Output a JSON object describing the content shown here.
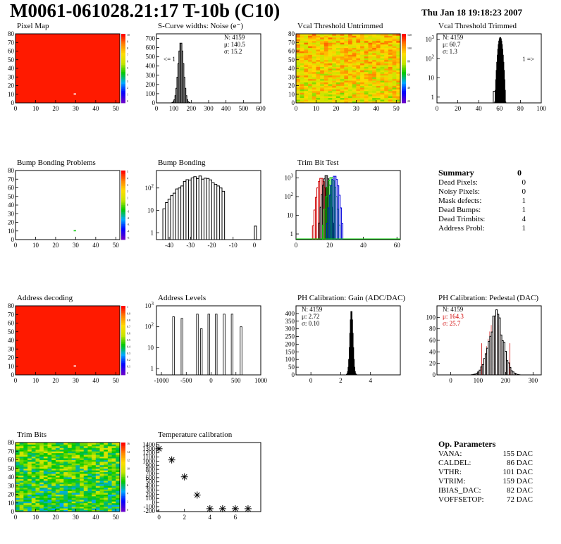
{
  "header": {
    "title": "M0061-061028.21:17 T-10b (C10)",
    "date": "Thu Jan 18 19:18:23 2007"
  },
  "colors": {
    "pixel_bg": "#ff1a00",
    "histo_line": "#000000",
    "trim_red": "#d00000",
    "trim_green": "#00cc00",
    "trim_blue": "#0000dd",
    "red_text": "#d00000"
  },
  "summary": {
    "title": "Summary",
    "total": "0",
    "rows": [
      {
        "label": "Dead Pixels:",
        "value": "0"
      },
      {
        "label": "Noisy Pixels:",
        "value": "0"
      },
      {
        "label": "Mask defects:",
        "value": "1"
      },
      {
        "label": "Dead Bumps:",
        "value": "1"
      },
      {
        "label": "Dead Trimbits:",
        "value": "4"
      },
      {
        "label": "Address Probl:",
        "value": "1"
      }
    ]
  },
  "op_params": {
    "title": "Op. Parameters",
    "rows": [
      {
        "label": "VANA:",
        "value": "155 DAC"
      },
      {
        "label": "CALDEL:",
        "value": "86 DAC"
      },
      {
        "label": "VTHR:",
        "value": "101 DAC"
      },
      {
        "label": "VTRIM:",
        "value": "159 DAC"
      },
      {
        "label": "IBIAS_DAC:",
        "value": "82 DAC"
      },
      {
        "label": "VOFFSETOP:",
        "value": "72 DAC"
      }
    ]
  },
  "chart_data": [
    {
      "id": "pixel_map",
      "type": "heatmap",
      "title": "Pixel Map",
      "xlim": [
        0,
        52
      ],
      "ylim": [
        0,
        80
      ],
      "xticks": [
        0,
        10,
        20,
        30,
        40,
        50
      ],
      "yticks": [
        0,
        10,
        20,
        30,
        40,
        50,
        60,
        70,
        80
      ],
      "fill": "uniform",
      "fill_color": "#ff1a00",
      "palette": "rainbow",
      "z_ticks": [
        "10",
        "9",
        "8",
        "7",
        "6",
        "5",
        "4",
        "3",
        "2",
        "1",
        "0"
      ],
      "special_cells": [
        {
          "x": 29,
          "y": 10,
          "color": "#ffffff"
        }
      ]
    },
    {
      "id": "noise",
      "type": "histogram",
      "title": "S-Curve widths: Noise (e⁻)",
      "xlim": [
        0,
        600
      ],
      "ylim": [
        0,
        750
      ],
      "xticks": [
        0,
        100,
        200,
        300,
        400,
        500,
        600
      ],
      "yticks": [
        0,
        100,
        200,
        300,
        400,
        500,
        600,
        700
      ],
      "peaks": [
        {
          "mu": 140.5,
          "sigma": 15.2,
          "amp": 660
        }
      ],
      "stats": [
        "N: 4159",
        "μ: 140.5",
        "σ: 15.2"
      ],
      "annotations": [
        {
          "text": "<= 1",
          "side": "left"
        }
      ]
    },
    {
      "id": "vcal_untrimmed",
      "type": "heatmap",
      "title": "Vcal Threshold Untrimmed",
      "xlim": [
        0,
        52
      ],
      "ylim": [
        0,
        80
      ],
      "xticks": [
        0,
        10,
        20,
        30,
        40,
        50
      ],
      "yticks": [
        0,
        10,
        20,
        30,
        40,
        50,
        60,
        70,
        80
      ],
      "fill": "noise_warm",
      "palette": "rainbow",
      "z_ticks": [
        "120",
        "100",
        "80",
        "60",
        "40",
        "20"
      ]
    },
    {
      "id": "vcal_trimmed",
      "type": "histogram",
      "title": "Vcal Threshold Trimmed",
      "log": true,
      "xlim": [
        0,
        100
      ],
      "ylim": [
        0.5,
        2000
      ],
      "xticks": [
        0,
        20,
        40,
        60,
        80,
        100
      ],
      "yticks": [
        1,
        10,
        100,
        1000
      ],
      "peaks": [
        {
          "mu": 60.7,
          "sigma": 1.3,
          "amp": 1300
        }
      ],
      "outliers": [
        {
          "x": 55,
          "c": 2
        }
      ],
      "stats": [
        "N: 4159",
        "μ: 60.7",
        "σ: 1.3"
      ],
      "annotations": [
        {
          "text": "1 =>",
          "side": "right"
        }
      ]
    },
    {
      "id": "bump_problems",
      "type": "heatmap",
      "title": "Bump Bonding Problems",
      "xlim": [
        0,
        52
      ],
      "ylim": [
        0,
        80
      ],
      "xticks": [
        0,
        10,
        20,
        30,
        40,
        50
      ],
      "yticks": [
        0,
        10,
        20,
        30,
        40,
        50,
        60,
        70,
        80
      ],
      "fill": "empty",
      "palette": "rainbow",
      "z_ticks": [
        "5",
        "4",
        "3",
        "2",
        "1",
        "0",
        "-1",
        "-2",
        "-3",
        "-4",
        "-5"
      ],
      "special_cells": [
        {
          "x": 29,
          "y": 10,
          "color": "#22cc22"
        }
      ]
    },
    {
      "id": "bump_bonding",
      "type": "histogram",
      "title": "Bump Bonding",
      "log": true,
      "xlim": [
        -46,
        3
      ],
      "ylim": [
        0.5,
        600
      ],
      "xticks": [
        -40,
        -30,
        -20,
        -10,
        0
      ],
      "yticks": [
        1,
        10,
        100
      ],
      "peaks": [
        {
          "mu": -26,
          "sigma": 6.5,
          "amp": 300
        }
      ],
      "cut": [
        -43,
        -14
      ],
      "outliers": [
        {
          "x": 0.5,
          "c": 2
        }
      ]
    },
    {
      "id": "trim_bits",
      "type": "histogram",
      "title": "Trim Bit Test",
      "log": true,
      "xlim": [
        0,
        62
      ],
      "ylim": [
        0.5,
        2500
      ],
      "xticks": [
        0,
        20,
        40,
        60
      ],
      "yticks": [
        1,
        10,
        100,
        1000
      ],
      "series": [
        {
          "name": "",
          "color": "#d00000",
          "mu": 15,
          "sigma": 1.4,
          "amp": 1000
        },
        {
          "name": "",
          "color": "#000000",
          "mu": 18,
          "sigma": 1.2,
          "amp": 1400
        },
        {
          "name": "",
          "color": "#00cc00",
          "mu": 21,
          "sigma": 1.4,
          "amp": 1100
        },
        {
          "name": "",
          "color": "#0000dd",
          "mu": 23,
          "sigma": 1.3,
          "amp": 1300
        }
      ]
    },
    {
      "id": "address_decoding",
      "type": "heatmap",
      "title": "Address decoding",
      "xlim": [
        0,
        52
      ],
      "ylim": [
        0,
        80
      ],
      "xticks": [
        0,
        10,
        20,
        30,
        40,
        50
      ],
      "yticks": [
        0,
        10,
        20,
        30,
        40,
        50,
        60,
        70,
        80
      ],
      "fill": "uniform",
      "fill_color": "#ff1a00",
      "palette": "rainbow",
      "z_ticks": [
        "1",
        "0.9",
        "0.8",
        "0.7",
        "0.6",
        "0.5",
        "0.4",
        "0.3",
        "0.2",
        "0.1",
        "0"
      ],
      "special_cells": [
        {
          "x": 29,
          "y": 10,
          "color": "#ffffff"
        }
      ]
    },
    {
      "id": "address_levels",
      "type": "histogram",
      "title": "Address Levels",
      "log": true,
      "xlim": [
        -1100,
        1000
      ],
      "ylim": [
        0.5,
        1000
      ],
      "xticks": [
        -1000,
        -500,
        0,
        500,
        1000
      ],
      "yticks": [
        1,
        10,
        100,
        1000
      ],
      "spikes": [
        {
          "x": -760,
          "c": 300
        },
        {
          "x": -590,
          "c": 250
        },
        {
          "x": -280,
          "c": 400
        },
        {
          "x": -200,
          "c": 80
        },
        {
          "x": -50,
          "c": 400
        },
        {
          "x": 100,
          "c": 400
        },
        {
          "x": 260,
          "c": 400
        },
        {
          "x": 420,
          "c": 400
        },
        {
          "x": 600,
          "c": 100
        }
      ]
    },
    {
      "id": "ph_gain",
      "type": "histogram",
      "title": "PH Calibration: Gain (ADC/DAC)",
      "xlim": [
        -1,
        6
      ],
      "ylim": [
        0,
        450
      ],
      "xticks": [
        0,
        2,
        4
      ],
      "yticks": [
        0,
        50,
        100,
        150,
        200,
        250,
        300,
        350,
        400
      ],
      "peaks": [
        {
          "mu": 2.72,
          "sigma": 0.1,
          "amp": 420
        }
      ],
      "stats": [
        "N: 4159",
        "μ: 2.72",
        "σ: 0.10"
      ]
    },
    {
      "id": "ph_pedestal",
      "type": "histogram",
      "title": "PH Calibration: Pedestal (DAC)",
      "xlim": [
        -50,
        330
      ],
      "ylim": [
        0,
        120
      ],
      "xticks": [
        0,
        100,
        200,
        300
      ],
      "yticks": [
        0,
        20,
        40,
        60,
        80,
        100
      ],
      "peaks": [
        {
          "mu": 164.3,
          "sigma": 25.7,
          "amp": 100
        }
      ],
      "stats": [
        "N: 4159",
        "μ: 164.3",
        "σ: 25.7"
      ],
      "hatch": "red",
      "fit_bounds": [
        113,
        216
      ]
    },
    {
      "id": "trim_bits_map",
      "type": "heatmap",
      "title": "Trim Bits",
      "xlim": [
        0,
        52
      ],
      "ylim": [
        0,
        80
      ],
      "xticks": [
        0,
        10,
        20,
        30,
        40,
        50
      ],
      "yticks": [
        0,
        10,
        20,
        30,
        40,
        50,
        60,
        70,
        80
      ],
      "fill": "noise_green",
      "palette": "rainbow",
      "z_ticks": [
        "16",
        "14",
        "12",
        "10",
        "8",
        "6",
        "4",
        "2",
        "0"
      ]
    },
    {
      "id": "temperature",
      "type": "scatter",
      "title": "Temperature calibration",
      "xlim": [
        -0.2,
        8
      ],
      "ylim": [
        -220,
        1450
      ],
      "xticks": [
        0,
        2,
        4,
        6
      ],
      "yticks": [
        -200,
        -100,
        0,
        100,
        200,
        300,
        400,
        500,
        600,
        700,
        800,
        900,
        1000,
        1100,
        1200,
        1300,
        1400
      ],
      "ytick_labels": [
        "-200",
        "-100",
        "0",
        "100",
        "200",
        "300",
        "400",
        "500",
        "600",
        "700",
        "800",
        "900",
        "1000",
        "1100",
        "1200",
        "1300",
        "1400"
      ],
      "points": [
        {
          "x": 0,
          "y": 1300
        },
        {
          "x": 1,
          "y": 1030
        },
        {
          "x": 2,
          "y": 620
        },
        {
          "x": 3,
          "y": 180
        },
        {
          "x": 4,
          "y": -150
        },
        {
          "x": 5,
          "y": -150
        },
        {
          "x": 6,
          "y": -150
        },
        {
          "x": 7,
          "y": -150
        }
      ]
    }
  ]
}
